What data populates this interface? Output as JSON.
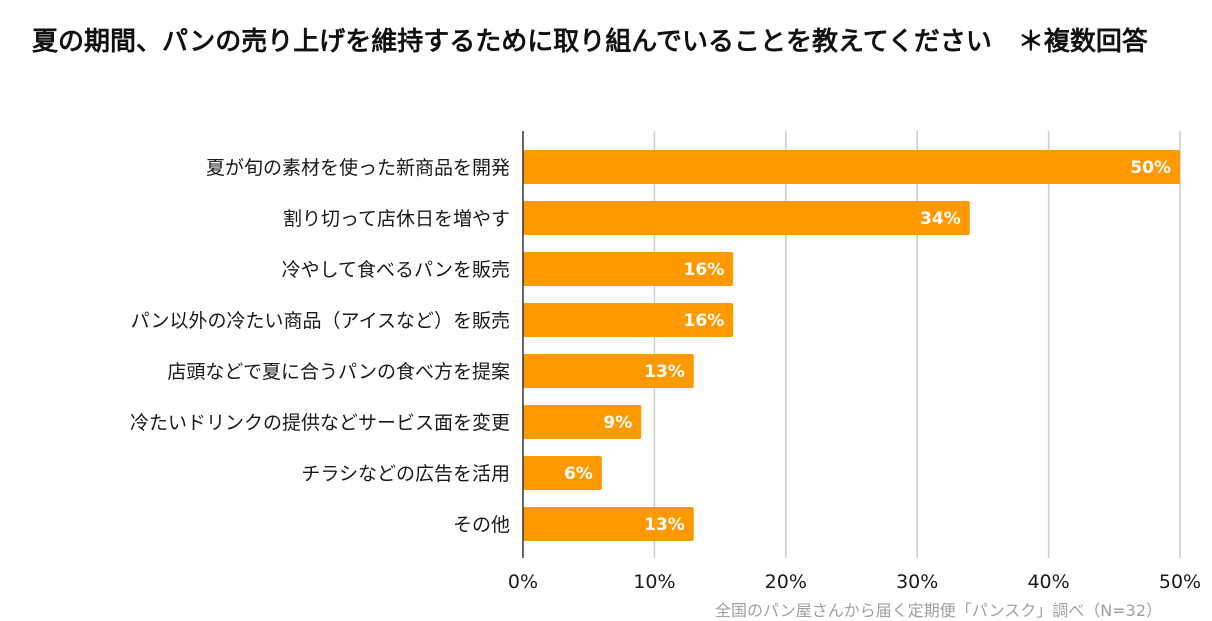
{
  "chart_data": {
    "type": "bar",
    "orientation": "horizontal",
    "title": "夏の期間、パンの売り上げを維持するために取り組んでいることを教えてください　＊複数回答",
    "categories": [
      "夏が旬の素材を使った新商品を開発",
      "割り切って店休日を増やす",
      "冷やして食べるパンを販売",
      "パン以外の冷たい商品（アイスなど）を販売",
      "店頭などで夏に合うパンの食べ方を提案",
      "冷たいドリンクの提供などサービス面を変更",
      "チラシなどの広告を活用",
      "その他"
    ],
    "values": [
      50,
      34,
      16,
      16,
      13,
      9,
      6,
      13
    ],
    "value_labels": [
      "50%",
      "34%",
      "16%",
      "16%",
      "13%",
      "9%",
      "6%",
      "13%"
    ],
    "xlim": [
      0,
      50
    ],
    "xticks": [
      "0%",
      "10%",
      "20%",
      "30%",
      "40%",
      "50%"
    ],
    "grid": true,
    "bar_color": "#ff9900",
    "grid_color": "#cccccc",
    "source": "全国のパン屋さんから届く定期便「パンスク」調べ（N=32）"
  }
}
